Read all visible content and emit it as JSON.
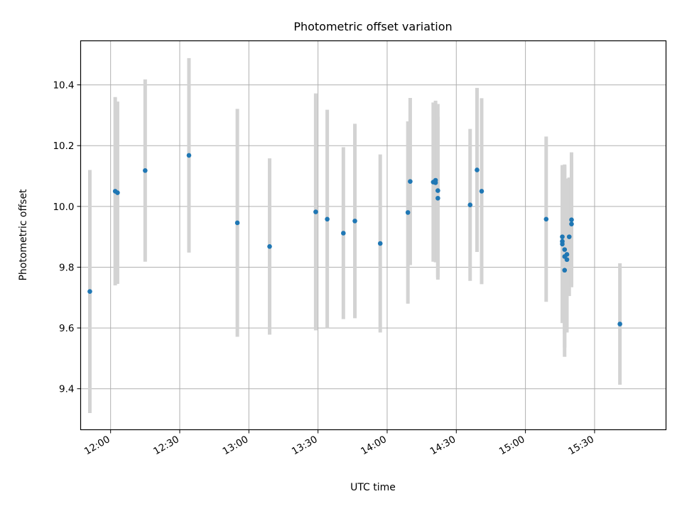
{
  "chart_data": {
    "type": "scatter",
    "title": "Photometric offset variation",
    "xlabel": "UTC time",
    "ylabel": "Photometric offset",
    "xlim": [
      "11:47",
      "16:01"
    ],
    "ylim": [
      9.265,
      10.545
    ],
    "x_ticks": [
      "12:00",
      "12:30",
      "13:00",
      "13:30",
      "14:00",
      "14:30",
      "15:00",
      "15:30"
    ],
    "y_ticks": [
      "9.4",
      "9.6",
      "9.8",
      "10.0",
      "10.2",
      "10.4"
    ],
    "grid": true,
    "colors": {
      "point": "#1f77b4",
      "errorbar": "#d3d3d3",
      "grid": "#b0b0b0"
    },
    "points": [
      {
        "x": "11:51",
        "y": 9.72,
        "err": 0.4
      },
      {
        "x": "12:02",
        "y": 10.05,
        "err": 0.31
      },
      {
        "x": "12:03",
        "y": 10.045,
        "err": 0.3
      },
      {
        "x": "12:15",
        "y": 10.118,
        "err": 0.3
      },
      {
        "x": "12:34",
        "y": 10.168,
        "err": 0.32
      },
      {
        "x": "12:55",
        "y": 9.946,
        "err": 0.375
      },
      {
        "x": "13:09",
        "y": 9.868,
        "err": 0.29
      },
      {
        "x": "13:29",
        "y": 9.982,
        "err": 0.39
      },
      {
        "x": "13:34",
        "y": 9.958,
        "err": 0.36
      },
      {
        "x": "13:41",
        "y": 9.912,
        "err": 0.283
      },
      {
        "x": "13:46",
        "y": 9.952,
        "err": 0.32
      },
      {
        "x": "13:57",
        "y": 9.878,
        "err": 0.293
      },
      {
        "x": "14:09",
        "y": 9.98,
        "err": 0.3
      },
      {
        "x": "14:10",
        "y": 10.082,
        "err": 0.275
      },
      {
        "x": "14:20",
        "y": 10.08,
        "err": 0.262
      },
      {
        "x": "14:21",
        "y": 10.078,
        "err": 0.262
      },
      {
        "x": "14:21",
        "y": 10.086,
        "err": 0.262
      },
      {
        "x": "14:22",
        "y": 10.052,
        "err": 0.285
      },
      {
        "x": "14:22",
        "y": 10.027,
        "err": 0.268
      },
      {
        "x": "14:36",
        "y": 10.005,
        "err": 0.25
      },
      {
        "x": "14:39",
        "y": 10.12,
        "err": 0.27
      },
      {
        "x": "14:41",
        "y": 10.05,
        "err": 0.306
      },
      {
        "x": "15:09",
        "y": 9.958,
        "err": 0.272
      },
      {
        "x": "15:16",
        "y": 9.9,
        "err": 0.18
      },
      {
        "x": "15:16",
        "y": 9.885,
        "err": 0.23
      },
      {
        "x": "15:16",
        "y": 9.876,
        "err": 0.26
      },
      {
        "x": "15:17",
        "y": 9.858,
        "err": 0.28
      },
      {
        "x": "15:17",
        "y": 9.835,
        "err": 0.3
      },
      {
        "x": "15:17",
        "y": 9.79,
        "err": 0.285
      },
      {
        "x": "15:18",
        "y": 9.842,
        "err": 0.25
      },
      {
        "x": "15:18",
        "y": 9.825,
        "err": 0.24
      },
      {
        "x": "15:19",
        "y": 9.9,
        "err": 0.195
      },
      {
        "x": "15:20",
        "y": 9.942,
        "err": 0.2
      },
      {
        "x": "15:20",
        "y": 9.956,
        "err": 0.222
      },
      {
        "x": "15:41",
        "y": 9.613,
        "err": 0.2
      }
    ]
  }
}
